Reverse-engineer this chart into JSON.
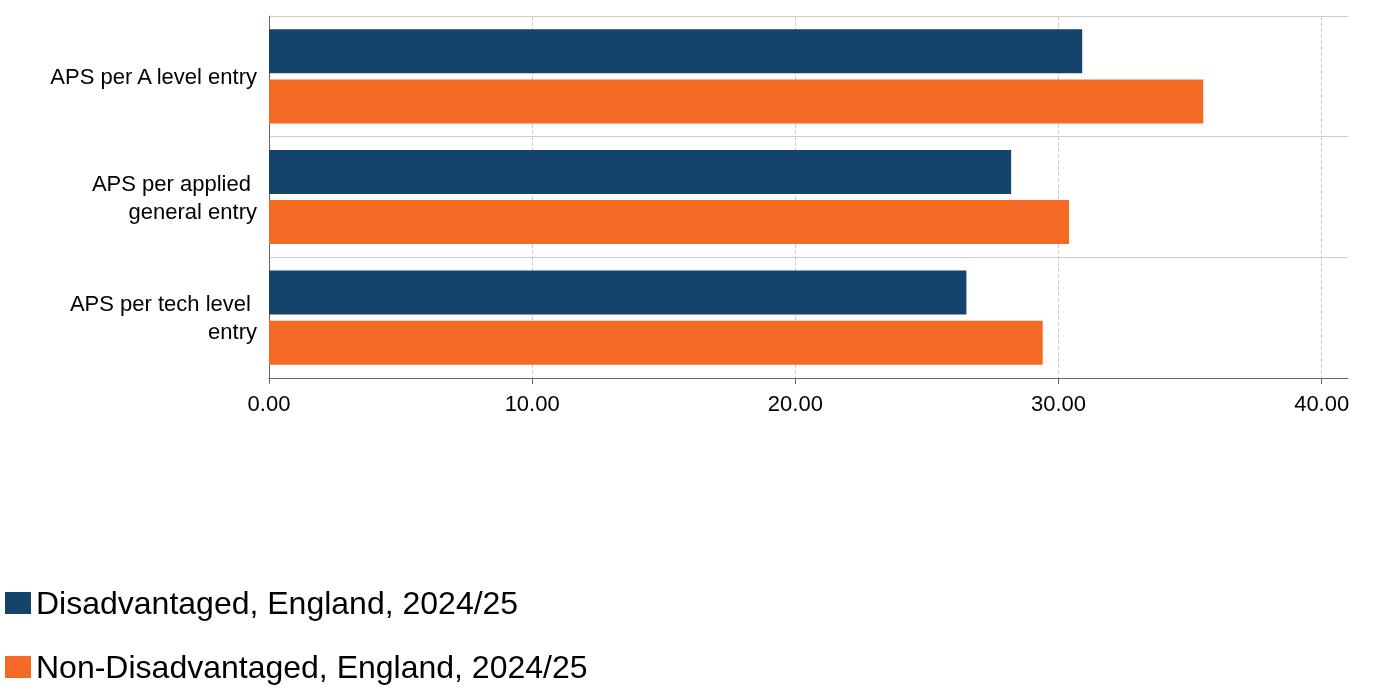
{
  "chart_data": {
    "type": "bar",
    "orientation": "horizontal",
    "categories": [
      "APS per A level entry",
      "APS per applied general entry",
      "APS per tech level entry"
    ],
    "series": [
      {
        "name": "Disadvantaged, England, 2024/25",
        "color": "#14446c",
        "values": [
          30.9,
          28.2,
          26.5
        ]
      },
      {
        "name": "Non-Disadvantaged, England, 2024/25",
        "color": "#f46a25",
        "values": [
          35.5,
          30.4,
          29.4
        ]
      }
    ],
    "xlim": [
      0,
      41
    ],
    "xticks": [
      {
        "value": 0,
        "label": "0.00"
      },
      {
        "value": 10,
        "label": "10.00"
      },
      {
        "value": 20,
        "label": "20.00"
      },
      {
        "value": 30,
        "label": "30.00"
      },
      {
        "value": 40,
        "label": "40.00"
      }
    ],
    "grid": true,
    "legend": "bottom left"
  }
}
